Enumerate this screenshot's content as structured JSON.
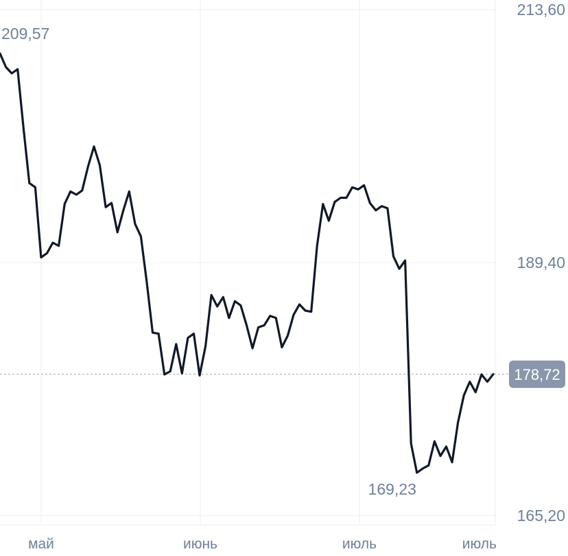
{
  "chart_data": {
    "type": "line",
    "y_ticks": [
      "213,60",
      "189,40",
      "165,20"
    ],
    "y_tick_values": [
      213.6,
      189.4,
      165.2
    ],
    "ylim": [
      165.2,
      213.6
    ],
    "x_ticks": [
      "май",
      "июнь",
      "июль",
      "июль"
    ],
    "annotations": {
      "max_label": "209,57",
      "min_label": "169,23",
      "current_label": "178,72"
    },
    "current_value": 178.72,
    "grid": true,
    "series": [
      {
        "values": [
          209.4,
          208.1,
          207.5,
          207.9,
          202.3,
          197.0,
          196.6,
          189.9,
          190.3,
          191.3,
          191.0,
          195.0,
          196.2,
          195.9,
          196.3,
          198.6,
          200.5,
          198.7,
          194.7,
          195.1,
          192.3,
          194.4,
          196.2,
          193.1,
          191.9,
          187.5,
          182.7,
          182.6,
          178.7,
          179.0,
          181.6,
          178.8,
          182.2,
          182.6,
          178.6,
          181.4,
          186.3,
          185.2,
          186.1,
          184.1,
          185.7,
          185.3,
          183.4,
          181.2,
          183.2,
          183.4,
          184.3,
          184.1,
          181.3,
          182.4,
          184.4,
          185.4,
          184.8,
          184.7,
          191.0,
          195.0,
          193.4,
          195.2,
          195.6,
          195.6,
          196.6,
          196.4,
          196.8,
          195.1,
          194.4,
          194.8,
          194.6,
          190.0,
          188.8,
          189.6,
          172.1,
          169.3,
          169.7,
          170.0,
          172.3,
          170.9,
          171.8,
          170.3,
          174.1,
          176.7,
          178.0,
          177.0,
          178.7,
          178.0,
          178.72
        ]
      }
    ]
  }
}
